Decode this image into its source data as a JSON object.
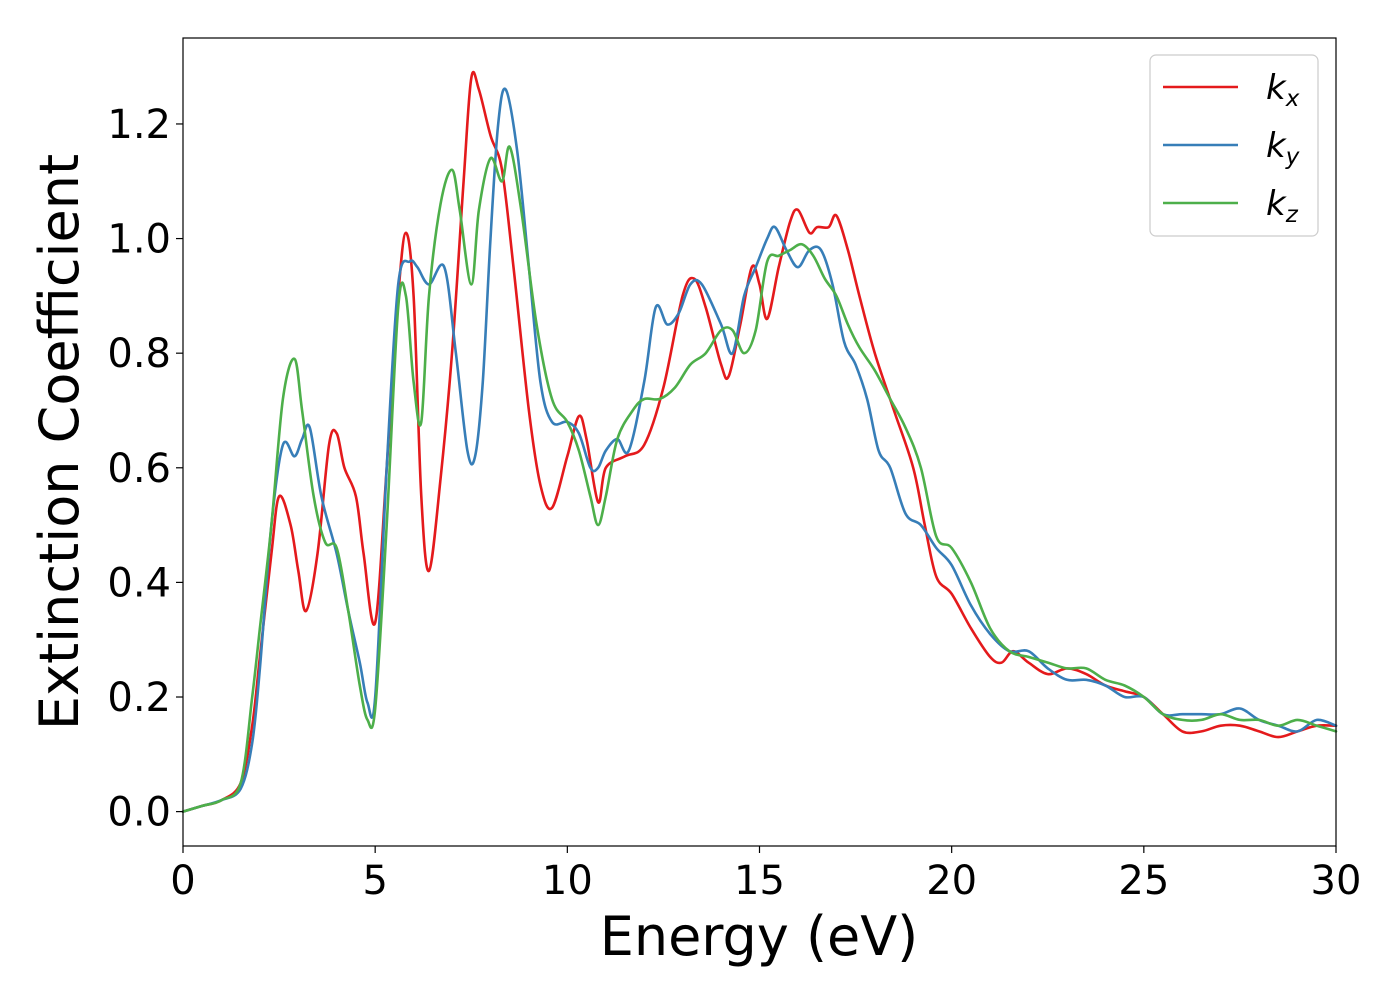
{
  "chart_data": {
    "type": "line",
    "title": "",
    "xlabel": "Energy (eV)",
    "ylabel": "Extinction Coefficient",
    "xlim": [
      0,
      30
    ],
    "ylim": [
      -0.06,
      1.35
    ],
    "xticks": [
      0,
      5,
      10,
      15,
      20,
      25,
      30
    ],
    "xtick_labels": [
      "0",
      "5",
      "10",
      "15",
      "20",
      "25",
      "30"
    ],
    "yticks": [
      0.0,
      0.2,
      0.4,
      0.6,
      0.8,
      1.0,
      1.2
    ],
    "ytick_labels": [
      "0.0",
      "0.2",
      "0.4",
      "0.6",
      "0.8",
      "1.0",
      "1.2"
    ],
    "grid": false,
    "legend_position": "top-right",
    "series": [
      {
        "name": "k_x",
        "label_main": "k",
        "label_sub": "x",
        "color": "#e41a1c",
        "x": [
          0,
          0.5,
          1.0,
          1.5,
          1.8,
          2.0,
          2.3,
          2.5,
          2.8,
          3.0,
          3.2,
          3.5,
          3.8,
          4.0,
          4.2,
          4.5,
          4.7,
          5.0,
          5.3,
          5.6,
          5.8,
          6.0,
          6.2,
          6.4,
          6.7,
          7.0,
          7.3,
          7.5,
          7.7,
          8.0,
          8.3,
          8.6,
          9.0,
          9.3,
          9.6,
          10.0,
          10.3,
          10.5,
          10.8,
          11.0,
          11.5,
          12.0,
          12.5,
          13.0,
          13.3,
          13.6,
          14.0,
          14.2,
          14.5,
          14.8,
          15.0,
          15.2,
          15.5,
          15.8,
          16.0,
          16.3,
          16.5,
          16.8,
          17.0,
          17.3,
          17.6,
          18.0,
          18.5,
          19.0,
          19.3,
          19.6,
          20.0,
          20.5,
          21.0,
          21.3,
          21.6,
          22.0,
          22.5,
          23.0,
          23.5,
          24.0,
          24.5,
          25.0,
          25.5,
          26.0,
          26.5,
          27.0,
          27.5,
          28.0,
          28.5,
          29.0,
          29.5,
          30.0
        ],
        "y": [
          0.0,
          0.01,
          0.02,
          0.05,
          0.15,
          0.27,
          0.45,
          0.55,
          0.5,
          0.42,
          0.35,
          0.45,
          0.64,
          0.66,
          0.6,
          0.55,
          0.45,
          0.33,
          0.6,
          0.9,
          1.01,
          0.9,
          0.55,
          0.42,
          0.58,
          0.8,
          1.1,
          1.28,
          1.26,
          1.18,
          1.12,
          0.95,
          0.7,
          0.57,
          0.53,
          0.62,
          0.69,
          0.65,
          0.54,
          0.6,
          0.62,
          0.64,
          0.74,
          0.9,
          0.93,
          0.88,
          0.78,
          0.76,
          0.85,
          0.95,
          0.92,
          0.86,
          0.95,
          1.03,
          1.05,
          1.01,
          1.02,
          1.02,
          1.04,
          0.98,
          0.9,
          0.8,
          0.7,
          0.6,
          0.5,
          0.41,
          0.38,
          0.32,
          0.27,
          0.26,
          0.28,
          0.26,
          0.24,
          0.25,
          0.24,
          0.22,
          0.21,
          0.2,
          0.17,
          0.14,
          0.14,
          0.15,
          0.15,
          0.14,
          0.13,
          0.14,
          0.15,
          0.15
        ]
      },
      {
        "name": "k_y",
        "label_main": "k",
        "label_sub": "y",
        "color": "#377eb8",
        "x": [
          0,
          0.5,
          1.0,
          1.5,
          1.8,
          2.0,
          2.3,
          2.6,
          2.9,
          3.1,
          3.3,
          3.6,
          4.0,
          4.3,
          4.6,
          4.8,
          5.0,
          5.3,
          5.6,
          5.9,
          6.1,
          6.4,
          6.8,
          7.1,
          7.4,
          7.6,
          7.8,
          8.0,
          8.2,
          8.4,
          8.7,
          9.0,
          9.3,
          9.6,
          10.0,
          10.3,
          10.6,
          10.8,
          11.0,
          11.3,
          11.6,
          12.0,
          12.3,
          12.6,
          12.9,
          13.2,
          13.5,
          14.0,
          14.3,
          14.6,
          14.9,
          15.2,
          15.4,
          15.7,
          16.0,
          16.3,
          16.6,
          16.9,
          17.2,
          17.5,
          17.8,
          18.1,
          18.4,
          18.8,
          19.2,
          19.6,
          20.0,
          20.5,
          21.0,
          21.5,
          22.0,
          22.5,
          23.0,
          23.5,
          24.0,
          24.5,
          25.0,
          25.5,
          26.0,
          26.5,
          27.0,
          27.5,
          28.0,
          28.5,
          29.0,
          29.5,
          30.0
        ],
        "y": [
          0.0,
          0.01,
          0.02,
          0.04,
          0.12,
          0.25,
          0.5,
          0.64,
          0.62,
          0.65,
          0.67,
          0.55,
          0.45,
          0.35,
          0.26,
          0.19,
          0.2,
          0.6,
          0.92,
          0.96,
          0.95,
          0.92,
          0.95,
          0.8,
          0.63,
          0.62,
          0.75,
          1.0,
          1.2,
          1.26,
          1.15,
          0.95,
          0.75,
          0.68,
          0.68,
          0.66,
          0.6,
          0.6,
          0.63,
          0.65,
          0.63,
          0.75,
          0.88,
          0.85,
          0.87,
          0.92,
          0.92,
          0.85,
          0.8,
          0.9,
          0.95,
          1.0,
          1.02,
          0.98,
          0.95,
          0.98,
          0.98,
          0.92,
          0.82,
          0.78,
          0.72,
          0.63,
          0.6,
          0.52,
          0.5,
          0.46,
          0.43,
          0.36,
          0.31,
          0.28,
          0.28,
          0.25,
          0.23,
          0.23,
          0.22,
          0.2,
          0.2,
          0.17,
          0.17,
          0.17,
          0.17,
          0.18,
          0.16,
          0.15,
          0.14,
          0.16,
          0.15
        ]
      },
      {
        "name": "k_z",
        "label_main": "k",
        "label_sub": "z",
        "color": "#4daf4a",
        "x": [
          0,
          0.5,
          1.0,
          1.5,
          1.8,
          2.0,
          2.3,
          2.6,
          2.9,
          3.1,
          3.4,
          3.7,
          4.0,
          4.3,
          4.6,
          4.8,
          5.0,
          5.3,
          5.6,
          5.8,
          6.0,
          6.2,
          6.4,
          6.7,
          7.0,
          7.2,
          7.5,
          7.7,
          8.0,
          8.3,
          8.5,
          8.8,
          9.2,
          9.6,
          10.0,
          10.3,
          10.6,
          10.8,
          11.0,
          11.3,
          11.7,
          12.0,
          12.4,
          12.8,
          13.2,
          13.6,
          14.0,
          14.3,
          14.6,
          14.9,
          15.2,
          15.5,
          15.8,
          16.1,
          16.4,
          16.7,
          17.0,
          17.3,
          17.6,
          18.0,
          18.4,
          18.8,
          19.2,
          19.6,
          20.0,
          20.5,
          21.0,
          21.5,
          22.0,
          22.5,
          23.0,
          23.5,
          24.0,
          24.5,
          25.0,
          25.5,
          26.0,
          26.5,
          27.0,
          27.5,
          28.0,
          28.5,
          29.0,
          29.5,
          30.0
        ],
        "y": [
          0.0,
          0.01,
          0.02,
          0.05,
          0.2,
          0.32,
          0.5,
          0.72,
          0.79,
          0.7,
          0.55,
          0.47,
          0.46,
          0.35,
          0.22,
          0.16,
          0.18,
          0.5,
          0.88,
          0.9,
          0.75,
          0.68,
          0.9,
          1.06,
          1.12,
          1.05,
          0.92,
          1.05,
          1.14,
          1.1,
          1.16,
          1.05,
          0.85,
          0.72,
          0.68,
          0.63,
          0.55,
          0.5,
          0.55,
          0.65,
          0.7,
          0.72,
          0.72,
          0.74,
          0.78,
          0.8,
          0.84,
          0.84,
          0.8,
          0.84,
          0.96,
          0.97,
          0.98,
          0.99,
          0.97,
          0.93,
          0.9,
          0.85,
          0.81,
          0.77,
          0.72,
          0.67,
          0.6,
          0.48,
          0.46,
          0.4,
          0.32,
          0.28,
          0.27,
          0.26,
          0.25,
          0.25,
          0.23,
          0.22,
          0.2,
          0.17,
          0.16,
          0.16,
          0.17,
          0.16,
          0.16,
          0.15,
          0.16,
          0.15,
          0.14
        ]
      }
    ]
  }
}
